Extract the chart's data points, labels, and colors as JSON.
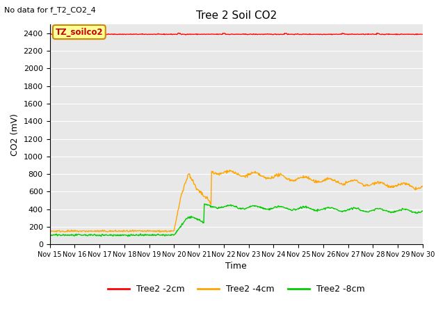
{
  "title": "Tree 2 Soil CO2",
  "no_data_text": "No data for f_T2_CO2_4",
  "xlabel": "Time",
  "ylabel": "CO2 (mV)",
  "ylim": [
    0,
    2500
  ],
  "yticks": [
    0,
    200,
    400,
    600,
    800,
    1000,
    1200,
    1400,
    1600,
    1800,
    2000,
    2200,
    2400
  ],
  "xtick_labels": [
    "Nov 15",
    "Nov 16",
    "Nov 17",
    "Nov 18",
    "Nov 19",
    "Nov 20",
    "Nov 21",
    "Nov 22",
    "Nov 23",
    "Nov 24",
    "Nov 25",
    "Nov 26",
    "Nov 27",
    "Nov 28",
    "Nov 29",
    "Nov 30"
  ],
  "bg_color": "#e8e8e8",
  "fig_color": "#ffffff",
  "legend_label_box": "TZ_soilco2",
  "legend_box_color": "#ffff99",
  "legend_box_edge": "#cc8800",
  "line_red_color": "#ff0000",
  "line_orange_color": "#ffa500",
  "line_green_color": "#00cc00",
  "legend_entries": [
    "Tree2 -2cm",
    "Tree2 -4cm",
    "Tree2 -8cm"
  ],
  "legend_colors": [
    "#ff0000",
    "#ffa500",
    "#00cc00"
  ]
}
